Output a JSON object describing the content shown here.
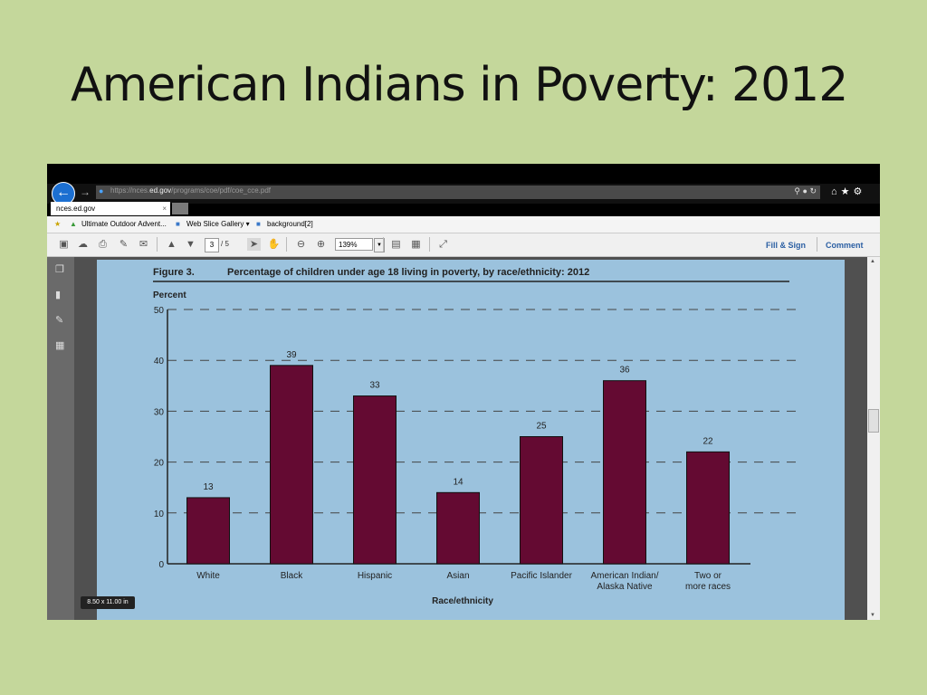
{
  "slide": {
    "title": "American Indians in Poverty: 2012"
  },
  "browser": {
    "url_prefix": "https://nces.",
    "url_domain": "ed.gov",
    "url_path": "/programs/coe/pdf/coe_cce.pdf",
    "tab_label": "nces.ed.gov",
    "tab_close": "×",
    "favorites": [
      "Ultimate Outdoor Advent...",
      "Web Slice Gallery ▾",
      "background[2]"
    ]
  },
  "pdf_toolbar": {
    "page_current": "3",
    "page_total": "/ 5",
    "zoom": "139%",
    "fill_sign": "Fill & Sign",
    "comment": "Comment"
  },
  "page_size_badge": "8.50 x 11.00 in",
  "icons": {
    "back": "arrow-left-icon",
    "forward": "arrow-right-icon",
    "search": "search-icon",
    "lock": "lock-icon",
    "refresh": "refresh-icon",
    "home": "home-icon",
    "star": "star-icon",
    "gear": "gear-icon"
  },
  "chart_data": {
    "type": "bar",
    "figure_label": "Figure 3.",
    "title": "Percentage of children under age 18 living in poverty, by race/ethnicity: 2012",
    "ylabel": "Percent",
    "xlabel": "Race/ethnicity",
    "categories": [
      [
        "White"
      ],
      [
        "Black"
      ],
      [
        "Hispanic"
      ],
      [
        "Asian"
      ],
      [
        "Pacific Islander"
      ],
      [
        "American Indian/",
        "Alaska Native"
      ],
      [
        "Two or",
        "more races"
      ]
    ],
    "values": [
      13,
      39,
      33,
      14,
      25,
      36,
      22
    ],
    "value_labels": [
      "13",
      "39",
      "33",
      "14",
      "25",
      "36",
      "22"
    ],
    "yticks": [
      0,
      10,
      20,
      30,
      40,
      50
    ],
    "ylim": [
      0,
      50
    ],
    "grid": "dashed",
    "bar_color": "#640a32"
  }
}
